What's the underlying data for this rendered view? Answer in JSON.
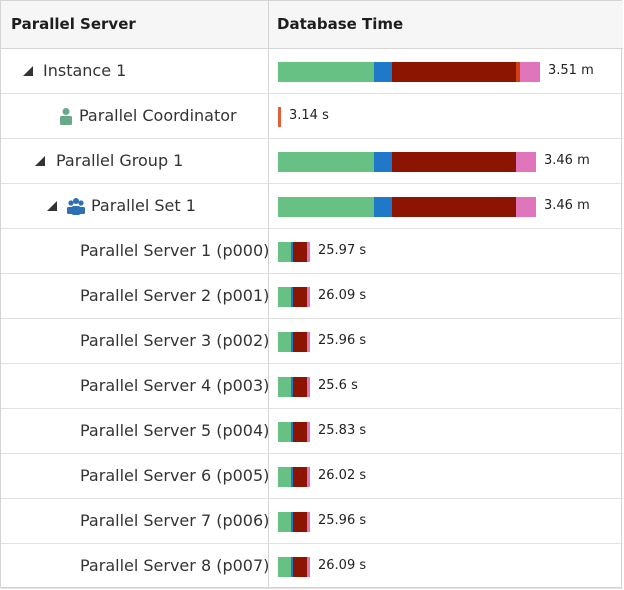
{
  "header": {
    "col1": "Parallel Server",
    "col2": "Database Time"
  },
  "colors": {
    "cpu": "#68c184",
    "io": "#1f78c8",
    "wait": "#8b1500",
    "other": "#e175bb",
    "sep": "#d04010"
  },
  "rows": [
    {
      "label": "Instance 1",
      "value": "3.51 m",
      "indent": 42,
      "toggle": true,
      "tri": 22,
      "icon": "",
      "segs": [
        {
          "w": 96,
          "c": "#68c184"
        },
        {
          "w": 18,
          "c": "#1f78c8"
        },
        {
          "w": 124,
          "c": "#8b1500"
        },
        {
          "w": 4,
          "c": "#d04010"
        },
        {
          "w": 20,
          "c": "#e175bb"
        }
      ]
    },
    {
      "label": "Parallel Coordinator",
      "value": "3.14 s",
      "indent": 78,
      "toggle": false,
      "tri": 0,
      "icon": "coordinator",
      "segs": [
        {
          "w": 3,
          "c": "#e0603c"
        }
      ]
    },
    {
      "label": "Parallel Group 1",
      "value": "3.46 m",
      "indent": 55,
      "toggle": true,
      "tri": 34,
      "icon": "",
      "segs": [
        {
          "w": 96,
          "c": "#68c184"
        },
        {
          "w": 18,
          "c": "#1f78c8"
        },
        {
          "w": 124,
          "c": "#8b1500"
        },
        {
          "w": 20,
          "c": "#e175bb"
        }
      ]
    },
    {
      "label": "Parallel Set 1",
      "value": "3.46 m",
      "indent": 90,
      "toggle": true,
      "tri": 46,
      "icon": "set",
      "segs": [
        {
          "w": 96,
          "c": "#68c184"
        },
        {
          "w": 18,
          "c": "#1f78c8"
        },
        {
          "w": 124,
          "c": "#8b1500"
        },
        {
          "w": 20,
          "c": "#e175bb"
        }
      ]
    },
    {
      "label": "Parallel Server 1 (p000)",
      "value": "25.97 s",
      "indent": 79,
      "toggle": false,
      "tri": 0,
      "icon": "",
      "segs": [
        {
          "w": 13,
          "c": "#68c184"
        },
        {
          "w": 2,
          "c": "#1f78c8"
        },
        {
          "w": 14,
          "c": "#8b1500"
        },
        {
          "w": 3,
          "c": "#e175bb"
        }
      ]
    },
    {
      "label": "Parallel Server 2 (p001)",
      "value": "26.09 s",
      "indent": 79,
      "toggle": false,
      "tri": 0,
      "icon": "",
      "segs": [
        {
          "w": 13,
          "c": "#68c184"
        },
        {
          "w": 2,
          "c": "#1f78c8"
        },
        {
          "w": 14,
          "c": "#8b1500"
        },
        {
          "w": 3,
          "c": "#e175bb"
        }
      ]
    },
    {
      "label": "Parallel Server 3 (p002)",
      "value": "25.96 s",
      "indent": 79,
      "toggle": false,
      "tri": 0,
      "icon": "",
      "segs": [
        {
          "w": 13,
          "c": "#68c184"
        },
        {
          "w": 2,
          "c": "#1f78c8"
        },
        {
          "w": 14,
          "c": "#8b1500"
        },
        {
          "w": 3,
          "c": "#e175bb"
        }
      ]
    },
    {
      "label": "Parallel Server 4 (p003)",
      "value": "25.6 s",
      "indent": 79,
      "toggle": false,
      "tri": 0,
      "icon": "",
      "segs": [
        {
          "w": 13,
          "c": "#68c184"
        },
        {
          "w": 2,
          "c": "#1f78c8"
        },
        {
          "w": 14,
          "c": "#8b1500"
        },
        {
          "w": 3,
          "c": "#e175bb"
        }
      ]
    },
    {
      "label": "Parallel Server 5 (p004)",
      "value": "25.83 s",
      "indent": 79,
      "toggle": false,
      "tri": 0,
      "icon": "",
      "segs": [
        {
          "w": 13,
          "c": "#68c184"
        },
        {
          "w": 2,
          "c": "#1f78c8"
        },
        {
          "w": 14,
          "c": "#8b1500"
        },
        {
          "w": 3,
          "c": "#e175bb"
        }
      ]
    },
    {
      "label": "Parallel Server 6 (p005)",
      "value": "26.02 s",
      "indent": 79,
      "toggle": false,
      "tri": 0,
      "icon": "",
      "segs": [
        {
          "w": 13,
          "c": "#68c184"
        },
        {
          "w": 2,
          "c": "#1f78c8"
        },
        {
          "w": 14,
          "c": "#8b1500"
        },
        {
          "w": 3,
          "c": "#e175bb"
        }
      ]
    },
    {
      "label": "Parallel Server 7 (p006)",
      "value": "25.96 s",
      "indent": 79,
      "toggle": false,
      "tri": 0,
      "icon": "",
      "segs": [
        {
          "w": 13,
          "c": "#68c184"
        },
        {
          "w": 2,
          "c": "#1f78c8"
        },
        {
          "w": 14,
          "c": "#8b1500"
        },
        {
          "w": 3,
          "c": "#e175bb"
        }
      ]
    },
    {
      "label": "Parallel Server 8 (p007)",
      "value": "26.09 s",
      "indent": 79,
      "toggle": false,
      "tri": 0,
      "icon": "",
      "segs": [
        {
          "w": 13,
          "c": "#68c184"
        },
        {
          "w": 2,
          "c": "#1f78c8"
        },
        {
          "w": 14,
          "c": "#8b1500"
        },
        {
          "w": 3,
          "c": "#e175bb"
        }
      ]
    }
  ]
}
